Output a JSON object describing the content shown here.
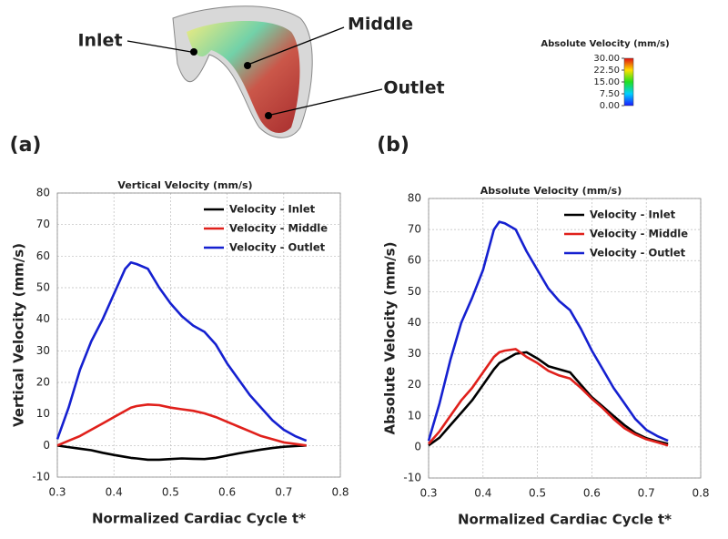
{
  "figure": {
    "labels": [
      "Inlet",
      "Middle",
      "Outlet"
    ],
    "colorbar": {
      "title": "Absolute Velocity (mm/s)",
      "ticks": [
        {
          "value": 30,
          "label": "30.00"
        },
        {
          "value": 22.5,
          "label": "22.50"
        },
        {
          "value": 15,
          "label": "15.00"
        },
        {
          "value": 7.5,
          "label": "7.50"
        },
        {
          "value": 0,
          "label": "0.00"
        }
      ],
      "lim": [
        0,
        30
      ]
    }
  },
  "chart_data": [
    {
      "type": "line",
      "panel": "(a)",
      "title": "Vertical Velocity (mm/s)",
      "x_label": "Normalized Cardiac Cycle t*",
      "y_label": "Vertical Velocity (mm/s)",
      "x": [
        0.3,
        0.32,
        0.34,
        0.36,
        0.38,
        0.4,
        0.42,
        0.43,
        0.44,
        0.46,
        0.48,
        0.5,
        0.52,
        0.54,
        0.56,
        0.58,
        0.6,
        0.62,
        0.64,
        0.66,
        0.68,
        0.7,
        0.72,
        0.74
      ],
      "series": [
        {
          "name": "Velocity - Inlet",
          "color": "#000000",
          "values": [
            0,
            -0.5,
            -1,
            -1.5,
            -2.3,
            -3,
            -3.6,
            -3.9,
            -4.1,
            -4.5,
            -4.5,
            -4.3,
            -4.1,
            -4.2,
            -4.3,
            -3.9,
            -3.2,
            -2.5,
            -1.9,
            -1.3,
            -0.8,
            -0.4,
            -0.2,
            0
          ]
        },
        {
          "name": "Velocity - Middle",
          "color": "#e0201b",
          "values": [
            0,
            1.5,
            3,
            5,
            7,
            9,
            11,
            12,
            12.5,
            13,
            12.8,
            12,
            11.5,
            11,
            10.2,
            9,
            7.5,
            6,
            4.5,
            3,
            2,
            1,
            0.5,
            0
          ]
        },
        {
          "name": "Velocity - Outlet",
          "color": "#1520d0",
          "values": [
            2,
            12,
            24,
            33,
            40,
            48,
            56,
            58,
            57.5,
            56,
            50,
            45,
            41,
            38,
            36,
            32,
            26,
            21,
            16,
            12,
            8,
            5,
            3,
            1.5
          ]
        }
      ],
      "xlim": [
        0.3,
        0.8
      ],
      "xticks": [
        0.3,
        0.4,
        0.5,
        0.6,
        0.7,
        0.8
      ],
      "ylim": [
        -10,
        80
      ],
      "yticks": [
        -10,
        0,
        10,
        20,
        30,
        40,
        50,
        60,
        70,
        80
      ],
      "grid": true,
      "legend": "upper right"
    },
    {
      "type": "line",
      "panel": "(b)",
      "title": "Absolute Velocity (mm/s)",
      "x_label": "Normalized Cardiac Cycle t*",
      "y_label": "Absolute Velocity (mm/s)",
      "x": [
        0.3,
        0.32,
        0.34,
        0.36,
        0.38,
        0.4,
        0.42,
        0.43,
        0.44,
        0.46,
        0.48,
        0.5,
        0.52,
        0.54,
        0.56,
        0.58,
        0.6,
        0.62,
        0.64,
        0.66,
        0.68,
        0.7,
        0.72,
        0.74
      ],
      "series": [
        {
          "name": "Velocity - Inlet",
          "color": "#000000",
          "values": [
            0.5,
            3,
            7,
            11,
            15,
            20,
            25,
            27,
            28,
            30,
            30.5,
            28.5,
            26,
            25,
            24,
            20,
            16,
            13,
            10,
            7,
            4.5,
            2.8,
            1.8,
            1
          ]
        },
        {
          "name": "Velocity - Middle",
          "color": "#e0201b",
          "values": [
            1,
            5,
            10,
            15,
            19,
            24,
            29,
            30.5,
            31,
            31.5,
            29,
            27,
            24.5,
            23,
            22,
            19,
            15.5,
            12.5,
            9,
            6,
            4,
            2.5,
            1.5,
            0.5
          ]
        },
        {
          "name": "Velocity - Outlet",
          "color": "#1520d0",
          "values": [
            2,
            14,
            28,
            40,
            48,
            57,
            70,
            72.5,
            72,
            70,
            63,
            57,
            51,
            47,
            44,
            38,
            31,
            25,
            19,
            14,
            9,
            5.5,
            3.5,
            2
          ]
        }
      ],
      "xlim": [
        0.3,
        0.8
      ],
      "xticks": [
        0.3,
        0.4,
        0.5,
        0.6,
        0.7,
        0.8
      ],
      "ylim": [
        -10,
        80
      ],
      "yticks": [
        -10,
        0,
        10,
        20,
        30,
        40,
        50,
        60,
        70,
        80
      ],
      "grid": true,
      "legend": "upper right"
    }
  ]
}
